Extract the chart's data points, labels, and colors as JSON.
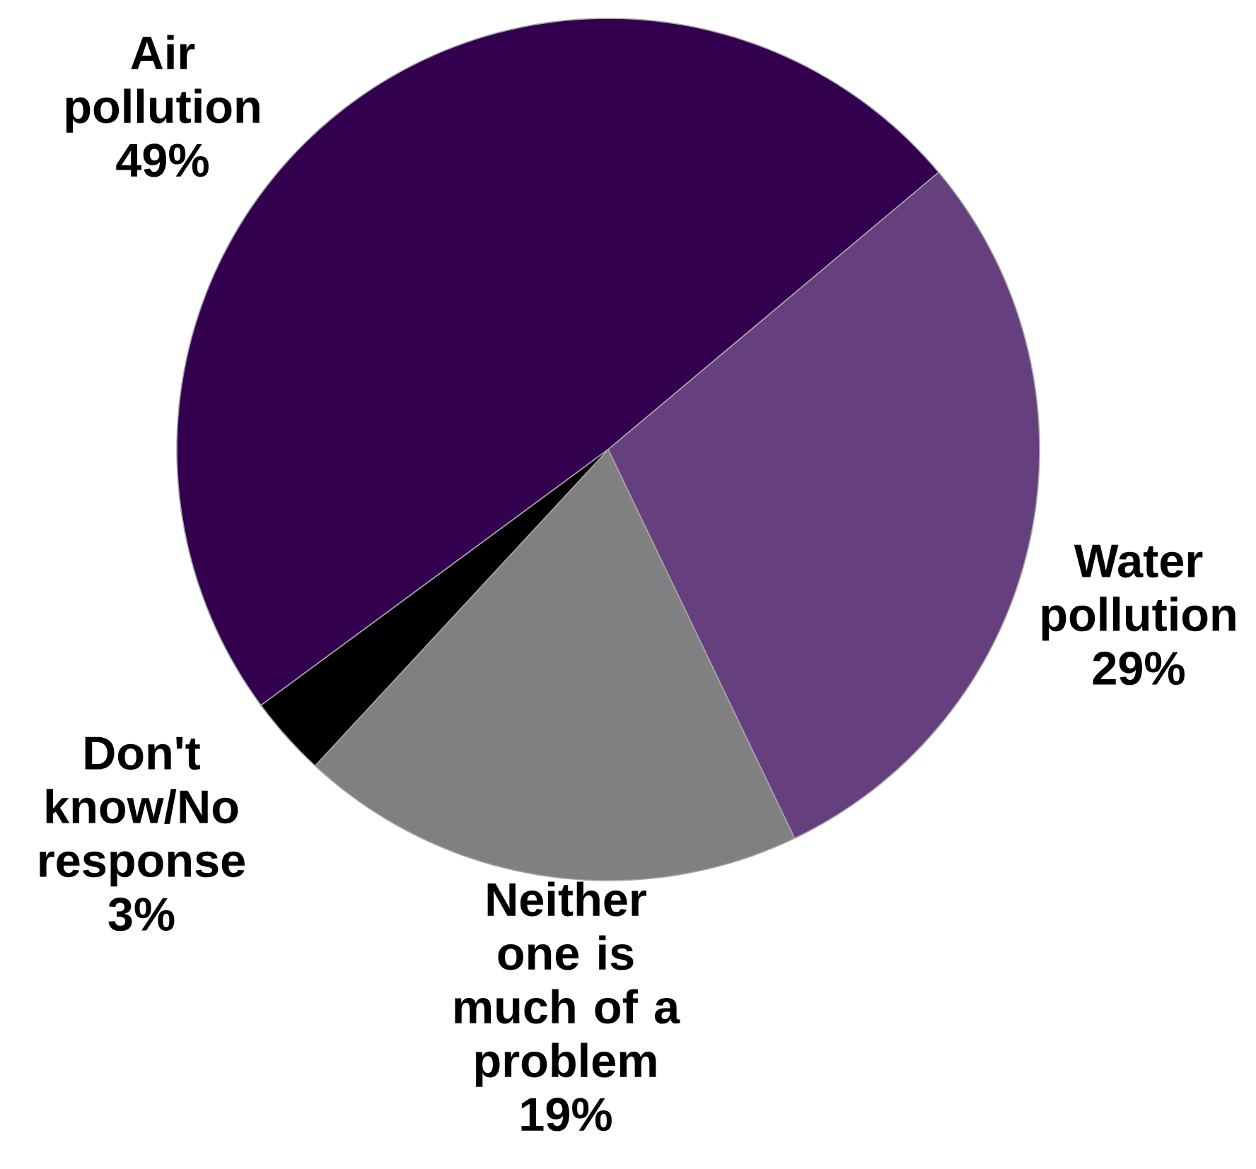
{
  "chart_data": {
    "type": "pie",
    "categories": [
      "Air pollution",
      "Water pollution",
      "Neither one is much of a problem",
      "Don't know/No response"
    ],
    "values": [
      49,
      29,
      19,
      3
    ],
    "value_labels": [
      "49%",
      "29%",
      "19%",
      "3%"
    ],
    "colors": [
      "#330050",
      "#663f7f",
      "#808080",
      "#000000"
    ]
  }
}
